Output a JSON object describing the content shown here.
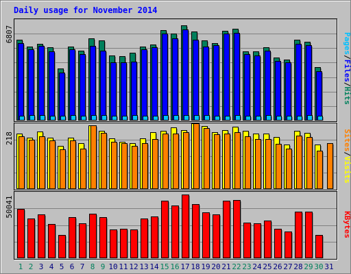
{
  "title": "Daily usage for November 2014",
  "colors": {
    "background": "#C0C0C0",
    "title": "#0000FF",
    "hits": "#00805C",
    "files": "#0000FF",
    "pages": "#00C0FF",
    "visits": "#FFFF00",
    "sites": "#FF8000",
    "kbytes": "#FF0000",
    "weekday_label": "#000080",
    "weekend_label": "#00805C",
    "grid": "#808080"
  },
  "chart_data": [
    {
      "type": "bar",
      "panel": "hits",
      "y_max_label": "6807",
      "ylim": [
        0,
        6807
      ],
      "categories": [
        "1",
        "2",
        "3",
        "4",
        "5",
        "6",
        "7",
        "8",
        "9",
        "10",
        "11",
        "12",
        "13",
        "14",
        "15",
        "16",
        "17",
        "18",
        "19",
        "20",
        "21",
        "22",
        "23",
        "24",
        "25",
        "26",
        "27",
        "28",
        "29",
        "30",
        "31"
      ],
      "weekend": [
        1,
        2,
        8,
        9,
        15,
        16,
        22,
        23,
        29,
        30
      ],
      "legend": [
        "Pages",
        "/",
        "Files",
        "/",
        "Hits"
      ],
      "series": [
        {
          "name": "Hits",
          "color": "#00805C",
          "values": [
            5430,
            4990,
            5160,
            4940,
            3480,
            4980,
            4690,
            5510,
            5360,
            4390,
            4310,
            4540,
            4980,
            5110,
            6070,
            5860,
            6390,
            6000,
            5390,
            5180,
            6010,
            6170,
            4650,
            4650,
            4920,
            4230,
            4080,
            5430,
            5300,
            3610,
            null
          ]
        },
        {
          "name": "Files",
          "color": "#0000FF",
          "values": [
            5180,
            4770,
            5010,
            4640,
            3240,
            4770,
            4440,
            5010,
            4710,
            3930,
            3930,
            3960,
            4770,
            4920,
            5860,
            5530,
            6100,
            5410,
            4970,
            5050,
            5860,
            5880,
            4460,
            4380,
            4690,
            3980,
            3900,
            5150,
            5060,
            3320,
            null
          ]
        },
        {
          "name": "Pages",
          "color": "#00C0FF",
          "values": [
            330,
            360,
            370,
            330,
            330,
            360,
            330,
            360,
            360,
            330,
            300,
            360,
            330,
            330,
            360,
            360,
            360,
            360,
            360,
            330,
            330,
            360,
            330,
            330,
            360,
            300,
            330,
            330,
            360,
            300,
            null
          ]
        }
      ]
    },
    {
      "type": "bar",
      "panel": "visits",
      "y_max_label": "218",
      "ylim": [
        0,
        218
      ],
      "legend": [
        "Sites",
        "/",
        "Visits"
      ],
      "series": [
        {
          "name": "Visits",
          "color": "#FFFF00",
          "values": [
            184,
            170,
            190,
            171,
            143,
            171,
            153,
            211,
            194,
            169,
            156,
            153,
            168,
            189,
            193,
            204,
            196,
            218,
            208,
            189,
            196,
            207,
            194,
            185,
            185,
            172,
            148,
            193,
            187,
            147,
            null
          ]
        },
        {
          "name": "Sites",
          "color": "#FF8000",
          "values": [
            175,
            164,
            174,
            161,
            131,
            162,
            135,
            211,
            186,
            156,
            152,
            144,
            152,
            166,
            184,
            183,
            188,
            218,
            202,
            182,
            184,
            189,
            174,
            166,
            165,
            151,
            135,
            178,
            172,
            128,
            152
          ]
        }
      ]
    },
    {
      "type": "bar",
      "panel": "kbytes",
      "y_max_label": "50041",
      "ylim": [
        0,
        50041
      ],
      "legend": [
        "KBytes"
      ],
      "series": [
        {
          "name": "KBytes",
          "color": "#FF0000",
          "values": [
            36980,
            30170,
            33260,
            25830,
            17400,
            31180,
            26290,
            33300,
            30940,
            21620,
            22370,
            21640,
            30140,
            31590,
            43370,
            39930,
            48170,
            40960,
            34510,
            33240,
            43200,
            44040,
            26580,
            26220,
            28610,
            22440,
            20200,
            35010,
            34850,
            17600,
            null
          ]
        }
      ]
    }
  ]
}
